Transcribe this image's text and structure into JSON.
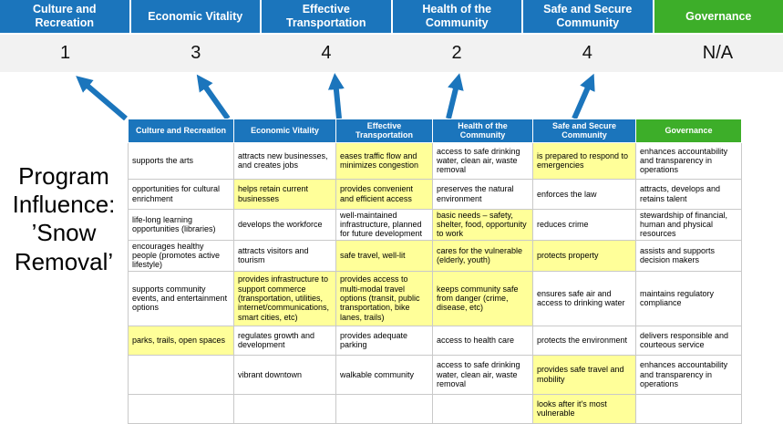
{
  "title": "Program Influence: ’Snow Removal’",
  "colors": {
    "header_blue": "#1B75BC",
    "header_green": "#3DAE29",
    "highlight_yellow": "#FFFF99",
    "score_band": "#F2F2F2",
    "arrow_blue": "#1B75BC",
    "grid_border": "#C9C9C9"
  },
  "summary": {
    "columns": [
      {
        "label": "Culture and Recreation",
        "score": "1",
        "header_color": "#1B75BC"
      },
      {
        "label": "Economic Vitality",
        "score": "3",
        "header_color": "#1B75BC"
      },
      {
        "label": "Effective Transportation",
        "score": "4",
        "header_color": "#1B75BC"
      },
      {
        "label": "Health of the Community",
        "score": "2",
        "header_color": "#1B75BC"
      },
      {
        "label": "Safe and Secure Community",
        "score": "4",
        "header_color": "#1B75BC"
      },
      {
        "label": "Governance",
        "score": "N/A",
        "header_color": "#3DAE29"
      }
    ]
  },
  "matrix": {
    "headers": [
      {
        "label": "Culture and Recreation",
        "color": "#1B75BC"
      },
      {
        "label": "Economic Vitality",
        "color": "#1B75BC"
      },
      {
        "label": "Effective Transportation",
        "color": "#1B75BC"
      },
      {
        "label": "Health of the Community",
        "color": "#1B75BC"
      },
      {
        "label": "Safe and Secure Community",
        "color": "#1B75BC"
      },
      {
        "label": "Governance",
        "color": "#3DAE29"
      }
    ],
    "rows": [
      [
        {
          "text": "supports the arts",
          "highlight": false
        },
        {
          "text": "attracts new businesses, and creates jobs",
          "highlight": false
        },
        {
          "text": "eases traffic flow and minimizes congestion",
          "highlight": true
        },
        {
          "text": "access to safe drinking water, clean air, waste removal",
          "highlight": false
        },
        {
          "text": "is prepared to respond to emergencies",
          "highlight": true
        },
        {
          "text": "enhances accountability and transparency in operations",
          "highlight": false
        }
      ],
      [
        {
          "text": "opportunities for cultural enrichment",
          "highlight": false
        },
        {
          "text": "helps retain current businesses",
          "highlight": true
        },
        {
          "text": "provides convenient and efficient access",
          "highlight": true
        },
        {
          "text": "preserves the natural environment",
          "highlight": false
        },
        {
          "text": "enforces the law",
          "highlight": false
        },
        {
          "text": "attracts, develops and retains talent",
          "highlight": false
        }
      ],
      [
        {
          "text": "life-long learning opportunities (libraries)",
          "highlight": false
        },
        {
          "text": "develops the workforce",
          "highlight": false
        },
        {
          "text": "well-maintained infrastructure, planned for future development",
          "highlight": false
        },
        {
          "text": "basic needs – safety, shelter, food, opportunity to work",
          "highlight": true
        },
        {
          "text": "reduces crime",
          "highlight": false
        },
        {
          "text": "stewardship of financial, human and physical resources",
          "highlight": false
        }
      ],
      [
        {
          "text": "encourages healthy people (promotes active lifestyle)",
          "highlight": false
        },
        {
          "text": "attracts visitors and tourism",
          "highlight": false
        },
        {
          "text": "safe travel, well-lit",
          "highlight": true
        },
        {
          "text": "cares for the vulnerable (elderly, youth)",
          "highlight": true
        },
        {
          "text": "protects property",
          "highlight": true
        },
        {
          "text": "assists and supports decision makers",
          "highlight": false
        }
      ],
      [
        {
          "text": "supports community events, and entertainment options",
          "highlight": false
        },
        {
          "text": "provides infrastructure to support commerce (transportation, utilities, internet/communications, smart cities, etc)",
          "highlight": true
        },
        {
          "text": "provides access to multi-modal travel options (transit, public transportation, bike lanes, trails)",
          "highlight": true
        },
        {
          "text": "keeps community safe from danger (crime, disease, etc)",
          "highlight": true
        },
        {
          "text": "ensures safe air and access to drinking water",
          "highlight": false
        },
        {
          "text": "maintains regulatory compliance",
          "highlight": false
        }
      ],
      [
        {
          "text": "parks, trails, open spaces",
          "highlight": true
        },
        {
          "text": "regulates growth and development",
          "highlight": false
        },
        {
          "text": "provides adequate parking",
          "highlight": false
        },
        {
          "text": "access to health care",
          "highlight": false
        },
        {
          "text": "protects the environment",
          "highlight": false
        },
        {
          "text": "delivers responsible and courteous service",
          "highlight": false
        }
      ],
      [
        {
          "text": "",
          "highlight": false
        },
        {
          "text": "vibrant downtown",
          "highlight": false
        },
        {
          "text": "walkable community",
          "highlight": false
        },
        {
          "text": "access to safe drinking water, clean air, waste removal",
          "highlight": false
        },
        {
          "text": "provides safe travel and mobility",
          "highlight": true
        },
        {
          "text": "enhances accountability and transparency in operations",
          "highlight": false
        }
      ],
      [
        {
          "text": "",
          "highlight": false
        },
        {
          "text": "",
          "highlight": false
        },
        {
          "text": "",
          "highlight": false
        },
        {
          "text": "",
          "highlight": false
        },
        {
          "text": "looks after it's most vulnerable",
          "highlight": true
        },
        {
          "text": "",
          "highlight": false
        }
      ]
    ]
  }
}
